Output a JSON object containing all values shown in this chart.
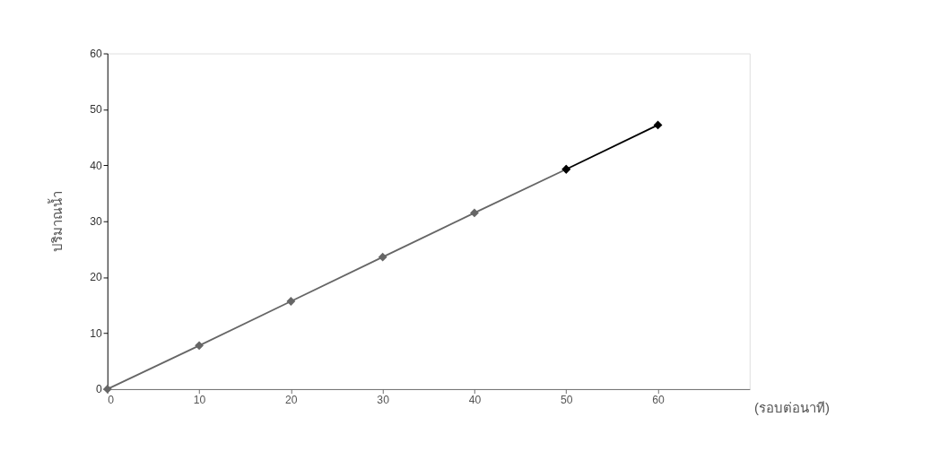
{
  "chart_data": {
    "type": "line",
    "xlabel": "(รอบต่อนาที)",
    "ylabel": "ปริมาณน้ำ",
    "xlim": [
      0,
      70
    ],
    "xticks": [
      0,
      10,
      20,
      30,
      40,
      50,
      60
    ],
    "ylim": [
      0,
      60
    ],
    "yticks": [
      0,
      10,
      20,
      30,
      40,
      50,
      60
    ],
    "grid": false,
    "marker": "diamond",
    "line_style": "solid",
    "series": [
      {
        "color": "#666666",
        "x": [
          0,
          10,
          20,
          30,
          40,
          50
        ],
        "values": [
          0,
          7.8,
          15.7,
          23.6,
          31.5,
          39.3
        ]
      },
      {
        "color": "#000000",
        "x": [
          50,
          60
        ],
        "values": [
          39.3,
          47.2
        ]
      }
    ]
  }
}
